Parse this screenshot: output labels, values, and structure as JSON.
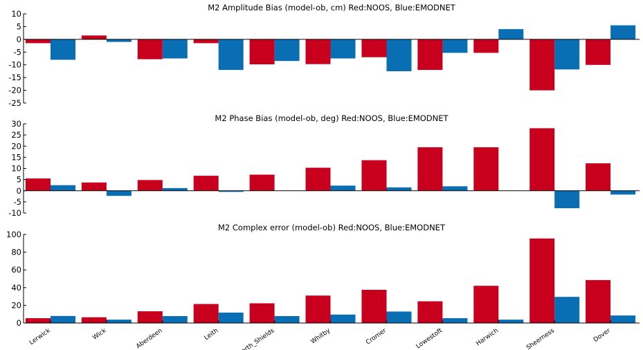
{
  "chart_data": [
    {
      "type": "bar",
      "title": "M2 Amplitude Bias (model-ob, cm) Red:NOOS, Blue:EMODNET",
      "categories": [
        "Lerwick",
        "Wick",
        "Aberdeen",
        "Leith",
        "North_Shields",
        "Whitby",
        "Cromer",
        "Lowestoft",
        "Harwich",
        "Sheerness",
        "Dover"
      ],
      "ylim": [
        -25,
        10
      ],
      "yticks": [
        10,
        5,
        0,
        -5,
        -10,
        -15,
        -20,
        -25
      ],
      "series": [
        {
          "name": "NOOS",
          "color": "#c8001e",
          "values": [
            -1.5,
            1.5,
            -7.8,
            -1.5,
            -9.8,
            -9.7,
            -7.0,
            -12.0,
            -5.3,
            -20.0,
            -10.0
          ]
        },
        {
          "name": "EMODNET",
          "color": "#0a6eb4",
          "values": [
            -8.0,
            -1.0,
            -7.5,
            -12.0,
            -8.5,
            -7.5,
            -12.5,
            -5.3,
            4.0,
            -11.8,
            5.5
          ]
        }
      ]
    },
    {
      "type": "bar",
      "title": "M2 Phase Bias (model-ob, deg) Red:NOOS, Blue:EMODNET",
      "categories": [
        "Lerwick",
        "Wick",
        "Aberdeen",
        "Leith",
        "North_Shields",
        "Whitby",
        "Cromer",
        "Lowestoft",
        "Harwich",
        "Sheerness",
        "Dover"
      ],
      "ylim": [
        -10,
        30
      ],
      "yticks": [
        30,
        25,
        20,
        15,
        10,
        5,
        0,
        -5,
        -10
      ],
      "series": [
        {
          "name": "NOOS",
          "color": "#c8001e",
          "values": [
            5.5,
            3.7,
            4.8,
            6.7,
            7.2,
            10.3,
            13.7,
            19.5,
            19.5,
            28.0,
            12.3
          ]
        },
        {
          "name": "EMODNET",
          "color": "#0a6eb4",
          "values": [
            2.5,
            -2.3,
            1.2,
            -0.5,
            0,
            2.3,
            1.5,
            2.0,
            0,
            -7.8,
            -1.7
          ]
        }
      ]
    },
    {
      "type": "bar",
      "title": "M2 Complex error (model-ob) Red:NOOS, Blue:EMODNET",
      "categories": [
        "Lerwick",
        "Wick",
        "Aberdeen",
        "Leith",
        "North_Shields",
        "Whitby",
        "Cromer",
        "Lowestoft",
        "Harwich",
        "Sheerness",
        "Dover"
      ],
      "ylim": [
        0,
        100
      ],
      "yticks": [
        100,
        80,
        60,
        40,
        20,
        0
      ],
      "series": [
        {
          "name": "NOOS",
          "color": "#c8001e",
          "values": [
            5.5,
            6.5,
            13.3,
            21.5,
            22.3,
            31.0,
            37.5,
            24.5,
            42.0,
            95.5,
            48.5
          ]
        },
        {
          "name": "EMODNET",
          "color": "#0a6eb4",
          "values": [
            8.0,
            3.8,
            7.8,
            11.8,
            7.8,
            9.5,
            13.0,
            5.5,
            3.8,
            29.5,
            8.5
          ]
        }
      ]
    }
  ]
}
